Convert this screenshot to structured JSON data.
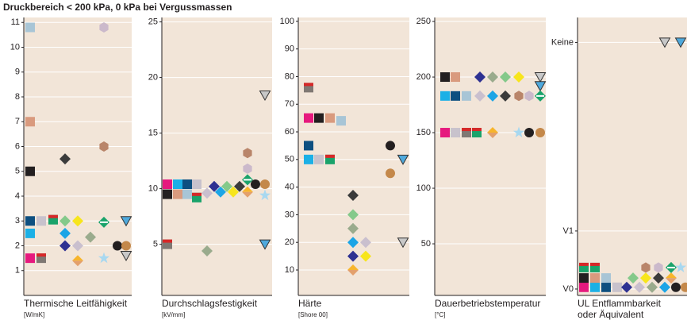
{
  "title": "Druckbereich < 200 kPa, 0 kPa bei Vergussmassen",
  "chart_data": [
    {
      "type": "dot",
      "xlabel": "Thermische Leitfähigkeit",
      "unit": "[W/mK]",
      "ylim": [
        0,
        11.2
      ],
      "yticks": [
        1,
        2,
        3,
        4,
        5,
        6,
        7,
        8,
        9,
        10,
        11
      ],
      "grid": true,
      "columns": [
        [
          {
            "marker": "square",
            "color": "#e6197e",
            "value": 1.5
          },
          {
            "marker": "square",
            "color": "#1cb0e6",
            "value": 2.5
          },
          {
            "marker": "square",
            "color": "#0d4f80",
            "value": 3
          },
          {
            "marker": "square",
            "color": "#231f20",
            "value": 5
          },
          {
            "marker": "square",
            "color": "#d99a7e",
            "value": 7
          },
          {
            "marker": "square",
            "color": "#a8c5d6",
            "value": 10.8
          }
        ],
        [
          {
            "marker": "square2",
            "color": "#7f7873",
            "color2": "#d62828",
            "value": 1.5
          },
          {
            "marker": "square",
            "color": "#c8c2cc",
            "value": 3
          }
        ],
        [
          {
            "marker": "square2",
            "color": "#1aa36b",
            "color2": "#d62828",
            "value": 3.05
          }
        ],
        [
          {
            "marker": "diamond",
            "color": "#84c98a",
            "value": 3
          },
          {
            "marker": "diamond",
            "color": "#1ca5e6",
            "value": 2.5
          },
          {
            "marker": "diamond",
            "color": "#2e3192",
            "value": 2
          },
          {
            "marker": "diamond",
            "color": "#3b3b3b",
            "value": 5.5
          }
        ],
        [
          {
            "marker": "diamond",
            "color": "#f7e51c",
            "value": 3
          },
          {
            "marker": "diamond2",
            "color": "#e3a06c",
            "color2": "#f7b52c",
            "value": 1.4
          },
          {
            "marker": "diamond",
            "color": "#c9bfce",
            "value": 2
          }
        ],
        [
          {
            "marker": "diamond",
            "color": "#9aab8d",
            "value": 2.35
          }
        ],
        [
          {
            "marker": "diamond-band",
            "color": "#1aa36b",
            "color2": "#ffffff",
            "value": 2.95
          },
          {
            "marker": "star",
            "color": "#a8d8f0",
            "value": 1.5
          },
          {
            "marker": "hexagon",
            "color": "#b9856a",
            "value": 6
          },
          {
            "marker": "hexagon",
            "color": "#cbb9cb",
            "value": 10.8
          }
        ],
        [
          {
            "marker": "circle",
            "color": "#231f20",
            "value": 2
          }
        ],
        [
          {
            "marker": "triangle",
            "color": "#4fa9dc",
            "value": 3
          },
          {
            "marker": "triangle",
            "color": "#c8c8c8",
            "value": 1.6
          },
          {
            "marker": "circle",
            "color": "#c4884a",
            "value": 2
          }
        ]
      ]
    },
    {
      "type": "dot",
      "xlabel": "Durchschlagsfestigkeit",
      "unit": "[kV/mm]",
      "ylim": [
        0.4,
        25.4
      ],
      "yticks": [
        5,
        10,
        15,
        20,
        25
      ],
      "grid": true,
      "columns": [
        [
          {
            "marker": "square",
            "color": "#e6197e",
            "value": 10.4
          },
          {
            "marker": "square",
            "color": "#231f20",
            "value": 9.5
          },
          {
            "marker": "square2",
            "color": "#7f7873",
            "color2": "#d62828",
            "value": 5
          }
        ],
        [
          {
            "marker": "square",
            "color": "#1cb0e6",
            "value": 10.4
          },
          {
            "marker": "square",
            "color": "#d99a7e",
            "value": 9.5
          }
        ],
        [
          {
            "marker": "square",
            "color": "#0d4f80",
            "value": 10.4
          },
          {
            "marker": "square",
            "color": "#a8c5d6",
            "value": 9.5
          }
        ],
        [
          {
            "marker": "square",
            "color": "#c8c2cc",
            "value": 10.4
          },
          {
            "marker": "square2",
            "color": "#1aa36b",
            "color2": "#d62828",
            "value": 9.2
          }
        ],
        [
          {
            "marker": "diamond",
            "color": "#c9bfce",
            "value": 9.6
          },
          {
            "marker": "diamond",
            "color": "#9aab8d",
            "value": 4.4
          }
        ],
        [
          {
            "marker": "diamond",
            "color": "#2e3192",
            "value": 10.2
          }
        ],
        [
          {
            "marker": "diamond",
            "color": "#1ca5e6",
            "value": 9.7
          }
        ],
        [
          {
            "marker": "diamond",
            "color": "#84c98a",
            "value": 10.2
          }
        ],
        [
          {
            "marker": "diamond",
            "color": "#f7e51c",
            "value": 9.7
          }
        ],
        [
          {
            "marker": "diamond",
            "color": "#3b3b3b",
            "value": 10.2
          }
        ],
        [
          {
            "marker": "hexagon",
            "color": "#b9856a",
            "value": 13.2
          },
          {
            "marker": "hexagon",
            "color": "#cbb9cb",
            "value": 11.8
          },
          {
            "marker": "diamond-band",
            "color": "#1aa36b",
            "color2": "#ffffff",
            "value": 10.8
          },
          {
            "marker": "diamond2",
            "color": "#e3a06c",
            "color2": "#f7b52c",
            "value": 9.7
          }
        ],
        [
          {
            "marker": "circle",
            "color": "#231f20",
            "value": 10.4
          }
        ],
        [
          {
            "marker": "triangle",
            "color": "#c8c8c8",
            "value": 18.4
          },
          {
            "marker": "circle",
            "color": "#c4884a",
            "value": 10.4
          },
          {
            "marker": "star",
            "color": "#a8d8f0",
            "value": 9.4
          },
          {
            "marker": "triangle",
            "color": "#4fa9dc",
            "value": 5
          }
        ]
      ]
    },
    {
      "type": "dot",
      "xlabel": "Härte",
      "unit": "[Shore 00]",
      "ylim": [
        0.8,
        101.4
      ],
      "yticks": [
        10,
        20,
        30,
        40,
        50,
        60,
        70,
        80,
        90,
        100
      ],
      "grid": true,
      "columns": [
        [
          {
            "marker": "square2",
            "color": "#7f7873",
            "color2": "#d62828",
            "value": 76
          },
          {
            "marker": "square",
            "color": "#e6197e",
            "value": 65
          },
          {
            "marker": "square",
            "color": "#0d4f80",
            "value": 55
          },
          {
            "marker": "square",
            "color": "#1cb0e6",
            "value": 50
          }
        ],
        [
          {
            "marker": "square",
            "color": "#231f20",
            "value": 65
          },
          {
            "marker": "square",
            "color": "#c8c2cc",
            "value": 50
          }
        ],
        [
          {
            "marker": "square",
            "color": "#d99a7e",
            "value": 65
          },
          {
            "marker": "square2",
            "color": "#1aa36b",
            "color2": "#d62828",
            "value": 50
          }
        ],
        [
          {
            "marker": "square",
            "color": "#a8c5d6",
            "value": 64
          }
        ],
        [
          {
            "marker": "diamond",
            "color": "#3b3b3b",
            "value": 37
          },
          {
            "marker": "diamond",
            "color": "#84c98a",
            "value": 30
          },
          {
            "marker": "diamond",
            "color": "#9aab8d",
            "value": 25
          },
          {
            "marker": "diamond",
            "color": "#1ca5e6",
            "value": 20
          },
          {
            "marker": "diamond",
            "color": "#2e3192",
            "value": 15
          },
          {
            "marker": "diamond2",
            "color": "#e3a06c",
            "color2": "#f7b52c",
            "value": 10
          }
        ],
        [
          {
            "marker": "diamond",
            "color": "#c9bfce",
            "value": 20
          },
          {
            "marker": "diamond",
            "color": "#f7e51c",
            "value": 15
          }
        ],
        [
          {
            "marker": "circle",
            "color": "#231f20",
            "value": 55
          },
          {
            "marker": "circle",
            "color": "#c4884a",
            "value": 45
          }
        ],
        [
          {
            "marker": "triangle",
            "color": "#4fa9dc",
            "value": 50
          },
          {
            "marker": "triangle",
            "color": "#c8c8c8",
            "value": 20
          }
        ]
      ]
    },
    {
      "type": "dot",
      "xlabel": "Dauerbetriebstemperatur",
      "unit": "[°C]",
      "ylim": [
        3.6,
        253.6
      ],
      "yticks": [
        50,
        100,
        150,
        200,
        250
      ],
      "grid": true,
      "columns": [
        [
          {
            "marker": "square",
            "color": "#231f20",
            "value": 200
          },
          {
            "marker": "square",
            "color": "#1cb0e6",
            "value": 183
          },
          {
            "marker": "square",
            "color": "#e6197e",
            "value": 150
          }
        ],
        [
          {
            "marker": "square",
            "color": "#d99a7e",
            "value": 200
          },
          {
            "marker": "square",
            "color": "#0d4f80",
            "value": 183
          },
          {
            "marker": "square",
            "color": "#c8c2cc",
            "value": 150
          }
        ],
        [
          {
            "marker": "square",
            "color": "#a8c5d6",
            "value": 183
          },
          {
            "marker": "square2",
            "color": "#7f7873",
            "color2": "#d62828",
            "value": 150
          }
        ],
        [
          {
            "marker": "square2",
            "color": "#1aa36b",
            "color2": "#d62828",
            "value": 150
          }
        ],
        [
          {
            "marker": "diamond",
            "color": "#2e3192",
            "value": 200
          },
          {
            "marker": "diamond",
            "color": "#c9bfce",
            "value": 183
          }
        ],
        [
          {
            "marker": "diamond",
            "color": "#9aab8d",
            "value": 200
          },
          {
            "marker": "diamond",
            "color": "#1ca5e6",
            "value": 183
          },
          {
            "marker": "diamond2",
            "color": "#e3a06c",
            "color2": "#f7b52c",
            "value": 150
          }
        ],
        [
          {
            "marker": "diamond",
            "color": "#84c98a",
            "value": 200
          },
          {
            "marker": "diamond",
            "color": "#3b3b3b",
            "value": 183
          }
        ],
        [
          {
            "marker": "diamond",
            "color": "#f7e51c",
            "value": 200
          },
          {
            "marker": "hexagon",
            "color": "#b9856a",
            "value": 183
          },
          {
            "marker": "star",
            "color": "#a8d8f0",
            "value": 150
          }
        ],
        [
          {
            "marker": "hexagon",
            "color": "#cbb9cb",
            "value": 183
          },
          {
            "marker": "circle",
            "color": "#231f20",
            "value": 150
          }
        ],
        [
          {
            "marker": "triangle",
            "color": "#c8c8c8",
            "value": 200
          },
          {
            "marker": "triangle",
            "color": "#4fa9dc",
            "value": 192
          },
          {
            "marker": "diamond-band",
            "color": "#1aa36b",
            "color2": "#ffffff",
            "value": 183
          },
          {
            "marker": "circle",
            "color": "#c4884a",
            "value": 150
          }
        ]
      ]
    },
    {
      "type": "dot",
      "xlabel": [
        "UL Entflammbarkeit",
        "oder Äquivalent"
      ],
      "ylim": [
        -0.11,
        4.68
      ],
      "yticks": [
        {
          "value": 0,
          "label": "V0"
        },
        {
          "value": 1,
          "label": "V1"
        },
        {
          "value": 4.25,
          "label": "Keine"
        }
      ],
      "grid": true,
      "columns": [
        [
          {
            "marker": "square",
            "color": "#e6197e",
            "value": 0.03
          },
          {
            "marker": "square",
            "color": "#231f20",
            "value": 0.19
          },
          {
            "marker": "square2",
            "color": "#1aa36b",
            "color2": "#d62828",
            "value": 0.37
          }
        ],
        [
          {
            "marker": "square",
            "color": "#1cb0e6",
            "value": 0.03
          },
          {
            "marker": "square",
            "color": "#d99a7e",
            "value": 0.19
          },
          {
            "marker": "square2",
            "color": "#1aa36b",
            "color2": "#d62828",
            "value": 0.37
          }
        ],
        [
          {
            "marker": "square",
            "color": "#0d4f80",
            "value": 0.03
          },
          {
            "marker": "square",
            "color": "#a8c5d6",
            "value": 0.19
          }
        ],
        [
          {
            "marker": "square",
            "color": "#c8c2cc",
            "value": 0.03
          }
        ],
        [
          {
            "marker": "diamond",
            "color": "#2e3192",
            "value": 0.03
          }
        ],
        [
          {
            "marker": "diamond",
            "color": "#84c98a",
            "value": 0.19
          }
        ],
        [
          {
            "marker": "diamond",
            "color": "#c9bfce",
            "value": 0.03
          }
        ],
        [
          {
            "marker": "diamond",
            "color": "#f7e51c",
            "value": 0.19
          },
          {
            "marker": "hexagon",
            "color": "#b9856a",
            "value": 0.37
          }
        ],
        [
          {
            "marker": "diamond",
            "color": "#9aab8d",
            "value": 0.03
          }
        ],
        [
          {
            "marker": "diamond",
            "color": "#3b3b3b",
            "value": 0.19
          },
          {
            "marker": "hexagon",
            "color": "#cbb9cb",
            "value": 0.37
          }
        ],
        [
          {
            "marker": "diamond",
            "color": "#1ca5e6",
            "value": 0.03
          },
          {
            "marker": "triangle",
            "color": "#c8c8c8",
            "value": 4.25
          }
        ],
        [
          {
            "marker": "diamond2",
            "color": "#e3a06c",
            "color2": "#f7b52c",
            "value": 0.19
          },
          {
            "marker": "diamond-band",
            "color": "#1aa36b",
            "color2": "#ffffff",
            "value": 0.37
          }
        ],
        [
          {
            "marker": "circle",
            "color": "#231f20",
            "value": 0.03
          }
        ],
        [
          {
            "marker": "star",
            "color": "#a8d8f0",
            "value": 0.37
          },
          {
            "marker": "triangle",
            "color": "#4fa9dc",
            "value": 4.25
          }
        ],
        [
          {
            "marker": "circle",
            "color": "#c4884a",
            "value": 0.03
          }
        ]
      ]
    }
  ]
}
